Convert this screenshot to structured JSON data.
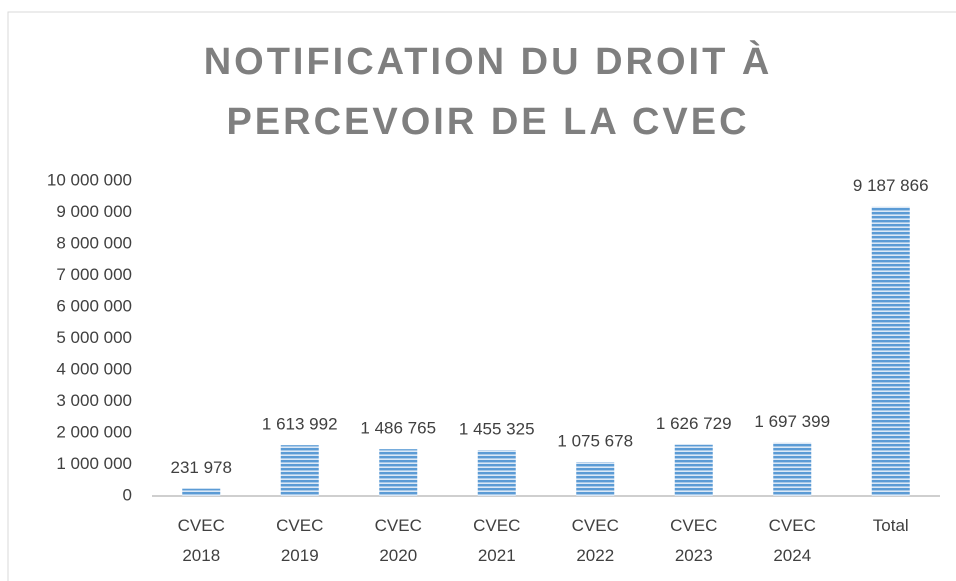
{
  "chart_data": {
    "type": "bar",
    "title": [
      "NOTIFICATION DU DROIT À",
      "PERCEVOIR DE LA CVEC"
    ],
    "categories": [
      "CVEC 2018",
      "CVEC 2019",
      "CVEC 2020",
      "CVEC 2021",
      "CVEC 2022",
      "CVEC 2023",
      "CVEC 2024",
      "Total"
    ],
    "values": [
      231978,
      1613992,
      1486765,
      1455325,
      1075678,
      1626729,
      1697399,
      9187866
    ],
    "value_labels": [
      "231 978",
      "1 613 992",
      "1 486 765",
      "1 455 325",
      "1 075 678",
      "1 626 729",
      "1 697 399",
      "9 187 866"
    ],
    "color": "#5b9bd5",
    "ylim": [
      0,
      10000000
    ],
    "yticks": [
      0,
      {
        "value": 1000000,
        "label": "1 000 000"
      },
      {
        "value": 2000000,
        "label": "2 000 000"
      },
      {
        "value": 3000000,
        "label": "3 000 000"
      },
      {
        "value": 4000000,
        "label": "4 000 000"
      },
      {
        "value": 5000000,
        "label": "5 000 000"
      },
      {
        "value": 6000000,
        "label": "6 000 000"
      },
      {
        "value": 7000000,
        "label": "7 000 000"
      },
      {
        "value": 8000000,
        "label": "8 000 000"
      },
      {
        "value": 9000000,
        "label": "9 000 000"
      },
      {
        "value": 10000000,
        "label": "10 000 000"
      }
    ],
    "grid": false
  }
}
